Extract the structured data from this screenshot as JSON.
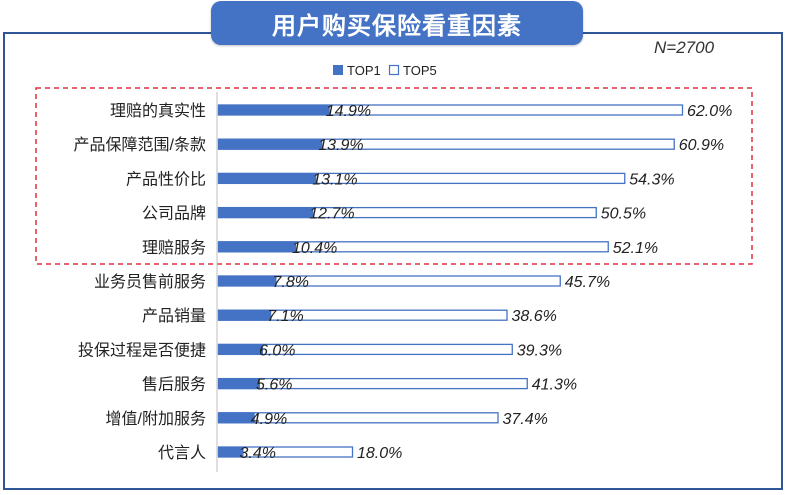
{
  "title": "用户购买保险看重因素",
  "sample_note": "N=2700",
  "colors": {
    "accent": "#4472c4",
    "frame": "#2f5597",
    "highlight_box": "#e0303a"
  },
  "chart_data": {
    "type": "bar",
    "orientation": "horizontal",
    "categories": [
      "理赔的真实性",
      "产品保障范围/条款",
      "产品性价比",
      "公司品牌",
      "理赔服务",
      "业务员售前服务",
      "产品销量",
      "投保过程是否便捷",
      "售后服务",
      "增值/附加服务",
      "代言人"
    ],
    "series": [
      {
        "name": "TOP1",
        "values": [
          14.9,
          13.9,
          13.1,
          12.7,
          10.4,
          7.8,
          7.1,
          6.0,
          5.6,
          4.9,
          3.4
        ],
        "labels": [
          "14.9%",
          "13.9%",
          "13.1%",
          "12.7%",
          "10.4%",
          "7.8%",
          "7.1%",
          "6.0%",
          "5.6%",
          "4.9%",
          "3.4%"
        ]
      },
      {
        "name": "TOP5",
        "values": [
          62.0,
          60.9,
          54.3,
          50.5,
          52.1,
          45.7,
          38.6,
          39.3,
          41.3,
          37.4,
          18.0
        ],
        "labels": [
          "62.0%",
          "60.9%",
          "54.3%",
          "50.5%",
          "52.1%",
          "45.7%",
          "38.6%",
          "39.3%",
          "41.3%",
          "37.4%",
          "18.0%"
        ]
      }
    ],
    "highlighted_categories": [
      "理赔的真实性",
      "产品保障范围/条款",
      "产品性价比",
      "公司品牌",
      "理赔服务"
    ],
    "legend": {
      "position": "top",
      "entries": [
        "TOP1",
        "TOP5"
      ]
    },
    "grid": false,
    "xlim": [
      0,
      62
    ]
  }
}
